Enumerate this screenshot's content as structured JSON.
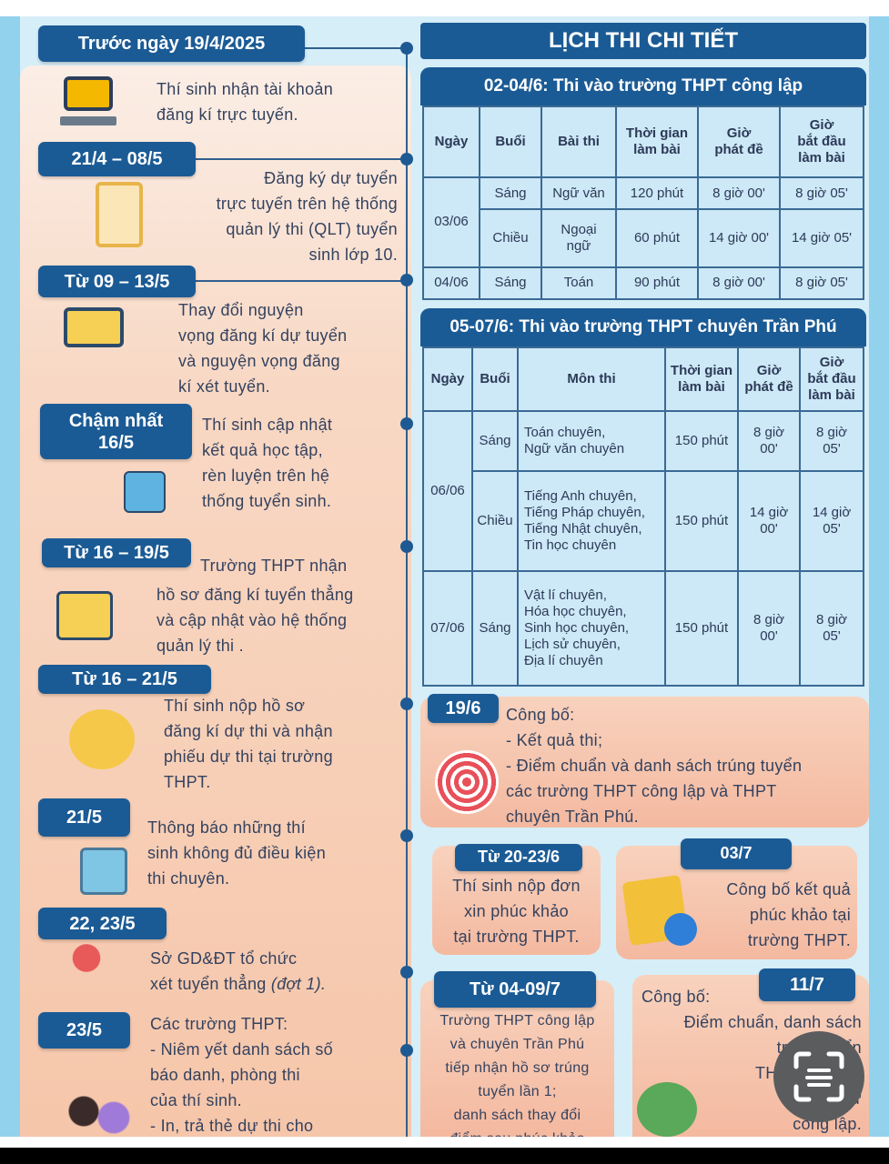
{
  "timeline": [
    {
      "date": "Trước ngày 19/4/2025",
      "text": "Thí sinh nhận tài khoản\nđăng kí trực tuyến."
    },
    {
      "date": "21/4 – 08/5",
      "text": "Đăng ký dự tuyển\ntrực tuyến trên hệ thống\nquản lý thi (QLT) tuyển\nsinh lớp 10."
    },
    {
      "date": "Từ 09 – 13/5",
      "text": "  Thay   đổi   nguyện\nvọng đăng kí dự tuyển\nvà  nguyện  vọng  đăng\nkí  xét tuyển."
    },
    {
      "date": "Chậm nhất\n16/5",
      "text": "  Thí  sinh  cập  nhật\nkết  quả  học  tập,\nrèn  luyện  trên  hệ\nthống tuyển sinh."
    },
    {
      "date": "Từ 16 – 19/5",
      "text_first": "Trường THPT nhận",
      "text": "hồ sơ đăng kí tuyển thẳng\nvà cập nhật vào hệ thống\nquản lý thi ."
    },
    {
      "date": "Từ 16 – 21/5",
      "text": "      Thí sinh nộp hồ sơ\nđăng  kí  dự  thi  và  nhận\nphiếu  dự  thi  tại  trường\nTHPT."
    },
    {
      "date": "21/5",
      "text": "  Thông  báo  những  thí\nsinh  không  đủ  điều  kiện\nthi chuyên."
    },
    {
      "date": "22, 23/5",
      "text": "   Sở  GD&ĐT  tổ  chức\nxét tuyển thẳng ",
      "text_italic": "(đợt 1)."
    },
    {
      "date": "23/5",
      "text": "Các trường THPT:\n- Niêm yết danh sách số\n  báo  danh,  phòng  thi\n  của thí sinh.\n- In,  trả  thẻ  dự  thi  cho"
    }
  ],
  "schedule": {
    "title": "LỊCH THI CHI TIẾT",
    "public": {
      "heading": "02-04/6: Thi vào trường THPT công lập",
      "columns": [
        "Ngày",
        "Buổi",
        "Bài thi",
        "Thời gian\nlàm bài",
        "Giờ\nphát đề",
        "Giờ\nbắt đầu\nlàm bài"
      ],
      "rows": [
        {
          "date": "03/06",
          "session": "Sáng",
          "subject": "Ngữ văn",
          "duration": "120 phút",
          "release": "8 giờ 00'",
          "start": "8 giờ 05'"
        },
        {
          "session": "Chiều",
          "subject": "Ngoại\nngữ",
          "duration": "60 phút",
          "release": "14 giờ 00'",
          "start": "14 giờ 05'"
        },
        {
          "date": "04/06",
          "session": "Sáng",
          "subject": "Toán",
          "duration": "90 phút",
          "release": "8 giờ 00'",
          "start": "8 giờ 05'"
        }
      ]
    },
    "specialized": {
      "heading": "05-07/6: Thi vào trường THPT chuyên Trần Phú",
      "columns": [
        "Ngày",
        "Buổi",
        "Môn thi",
        "Thời gian\nlàm bài",
        "Giờ\nphát đề",
        "Giờ\nbắt đầu\nlàm bài"
      ],
      "rows": [
        {
          "date": "06/06",
          "session": "Sáng",
          "subject": "Toán chuyên,\nNgữ văn chuyên",
          "duration": "150 phút",
          "release": "8 giờ\n00'",
          "start": "8 giờ\n05'"
        },
        {
          "session": "Chiều",
          "subject": "Tiếng Anh chuyên,\nTiếng Pháp chuyên,\nTiếng Nhật chuyên,\nTin học chuyên",
          "duration": "150 phút",
          "release": "14 giờ\n00'",
          "start": "14 giờ\n05'"
        },
        {
          "date": "07/06",
          "session": "Sáng",
          "subject": "Vật lí chuyên,\nHóa học chuyên,\nSinh học chuyên,\nLịch sử chuyên,\nĐịa lí chuyên",
          "duration": "150 phút",
          "release": "8 giờ\n00'",
          "start": "8 giờ\n05'"
        }
      ]
    }
  },
  "results": [
    {
      "date": "19/6",
      "text": "Công bố:\n- Kết quả thi;\n- Điểm chuẩn và danh sách trúng tuyển\n  các trường THPT công lập và THPT\n  chuyên Trần Phú."
    },
    {
      "date": "Từ 20-23/6",
      "text": "Thí sinh nộp đơn\nxin phúc khảo\ntại trường THPT."
    },
    {
      "date": "03/7",
      "text": "Công bố kết quả\nphúc khảo tại\ntrường THPT."
    },
    {
      "date": "Từ 04-09/7",
      "text": "Trường THPT công lập\nvà chuyên Trần Phú\ntiếp nhận hồ sơ trúng\ntuyển lần 1;\ndanh sách thay đổi\nđiểm sau phúc khảo"
    },
    {
      "date": "11/7",
      "heading": "Công bố:",
      "text": "Điểm chuẩn, danh sách\ntrúng tuyển\nTHPT Chuyên\nvà trư\ncông lập."
    }
  ],
  "overlay": {
    "icon": "scan-text-icon"
  },
  "colors": {
    "label": "#1b5b95",
    "peach": "#f6c6aa",
    "table": "#cde8f6",
    "background": "#d6eef8"
  }
}
